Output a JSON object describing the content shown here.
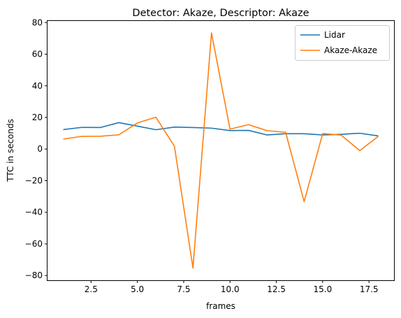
{
  "chart_data": {
    "type": "line",
    "title": "Detector: Akaze, Descriptor: Akaze",
    "xlabel": "frames",
    "ylabel": "TTC in seconds",
    "xlim": [
      0.15,
      18.85
    ],
    "ylim": [
      -83,
      81
    ],
    "xticks": [
      2.5,
      5.0,
      7.5,
      10.0,
      12.5,
      15.0,
      17.5
    ],
    "xtick_labels": [
      "2.5",
      "5.0",
      "7.5",
      "10.0",
      "12.5",
      "15.0",
      "17.5"
    ],
    "yticks": [
      -80,
      -60,
      -40,
      -20,
      0,
      20,
      40,
      60,
      80
    ],
    "ytick_labels": [
      "−80",
      "−60",
      "−40",
      "−20",
      "0",
      "20",
      "40",
      "60",
      "80"
    ],
    "grid": false,
    "legend_position": "top-right",
    "x": [
      1,
      2,
      3,
      4,
      5,
      6,
      7,
      8,
      9,
      10,
      11,
      12,
      13,
      14,
      15,
      16,
      17,
      18
    ],
    "series": [
      {
        "name": "Lidar",
        "color": "#1f77b4",
        "values": [
          12.3,
          13.7,
          13.6,
          16.7,
          14.5,
          12.2,
          13.9,
          13.6,
          13.2,
          11.7,
          11.8,
          8.9,
          9.7,
          9.7,
          8.9,
          9.3,
          10.0,
          8.3
        ]
      },
      {
        "name": "Akaze-Akaze",
        "color": "#ff7f0e",
        "values": [
          6.3,
          8.0,
          8.1,
          9.0,
          16.5,
          20.1,
          1.8,
          -75.3,
          73.4,
          12.6,
          15.4,
          11.6,
          10.6,
          -33.3,
          9.8,
          8.8,
          -1.0,
          8.0
        ]
      }
    ]
  }
}
